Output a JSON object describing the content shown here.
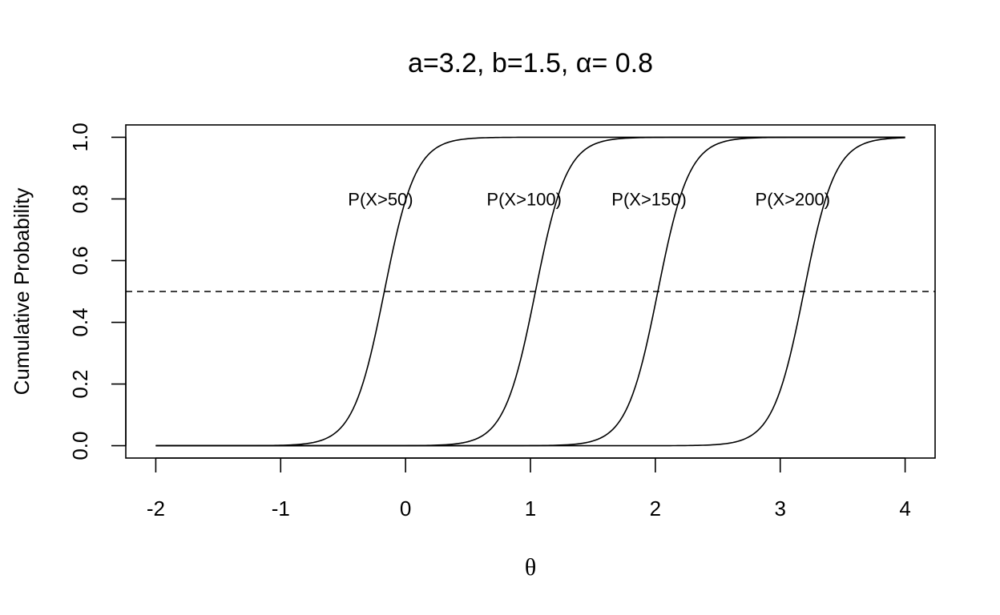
{
  "chart_data": {
    "type": "line",
    "title": "a=3.2, b=1.5, α= 0.8",
    "xlabel": "θ",
    "ylabel": "Cumulative Probability",
    "xlim": [
      -2.24,
      4.24
    ],
    "ylim": [
      -0.04,
      1.04
    ],
    "x_ticks": [
      "-2",
      "-1",
      "0",
      "1",
      "2",
      "3",
      "4"
    ],
    "y_ticks": [
      "0.0",
      "0.2",
      "0.4",
      "0.6",
      "0.8",
      "1.0"
    ],
    "reference_line": {
      "y": 0.5,
      "style": "dashed"
    },
    "grid": false,
    "legend": "none",
    "x_range": [
      -2,
      4
    ],
    "series": [
      {
        "label": "P(X>50)",
        "midpoint": -0.17,
        "slope": 8.0,
        "label_x": -0.2,
        "label_y": 0.8
      },
      {
        "label": "P(X>100)",
        "midpoint": 1.04,
        "slope": 8.0,
        "label_x": 0.95,
        "label_y": 0.8
      },
      {
        "label": "P(X>150)",
        "midpoint": 2.02,
        "slope": 8.0,
        "label_x": 1.95,
        "label_y": 0.8
      },
      {
        "label": "P(X>200)",
        "midpoint": 3.19,
        "slope": 8.0,
        "label_x": 3.1,
        "label_y": 0.8
      }
    ]
  }
}
